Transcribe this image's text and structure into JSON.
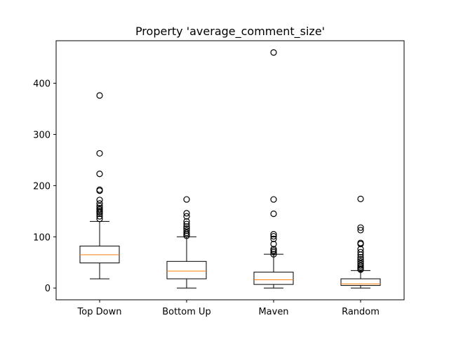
{
  "chart_data": {
    "type": "boxplot",
    "title": "Property 'average_comment_size'",
    "xlabel": "",
    "ylabel": "",
    "ylim": [
      -23,
      483
    ],
    "yticks": [
      0,
      100,
      200,
      300,
      400
    ],
    "categories": [
      "Top Down",
      "Bottom Up",
      "Maven",
      "Random"
    ],
    "colors": {
      "box": "#000000",
      "median": "#ff7f0e",
      "background": "#ffffff"
    },
    "grid": false,
    "series": [
      {
        "category": "Top Down",
        "whisker_low": 18,
        "q1": 49,
        "median": 65,
        "q3": 82,
        "whisker_high": 130,
        "outliers": [
          135,
          140,
          145,
          148,
          150,
          153,
          156,
          160,
          165,
          172,
          190,
          192,
          223,
          263,
          376
        ]
      },
      {
        "category": "Bottom Up",
        "whisker_low": 0,
        "q1": 18,
        "median": 33,
        "q3": 52,
        "whisker_high": 100,
        "outliers": [
          102,
          105,
          108,
          112,
          116,
          120,
          125,
          130,
          140,
          146,
          173
        ]
      },
      {
        "category": "Maven",
        "whisker_low": 0,
        "q1": 7,
        "median": 16,
        "q3": 31,
        "whisker_high": 66,
        "outliers": [
          66,
          70,
          73,
          76,
          86,
          96,
          101,
          105,
          145,
          173,
          460
        ]
      },
      {
        "category": "Random",
        "whisker_low": 0,
        "q1": 5,
        "median": 8,
        "q3": 18,
        "whisker_high": 34,
        "outliers": [
          36,
          38,
          41,
          44,
          48,
          52,
          56,
          60,
          65,
          70,
          76,
          86,
          88,
          113,
          118,
          174
        ]
      }
    ]
  }
}
